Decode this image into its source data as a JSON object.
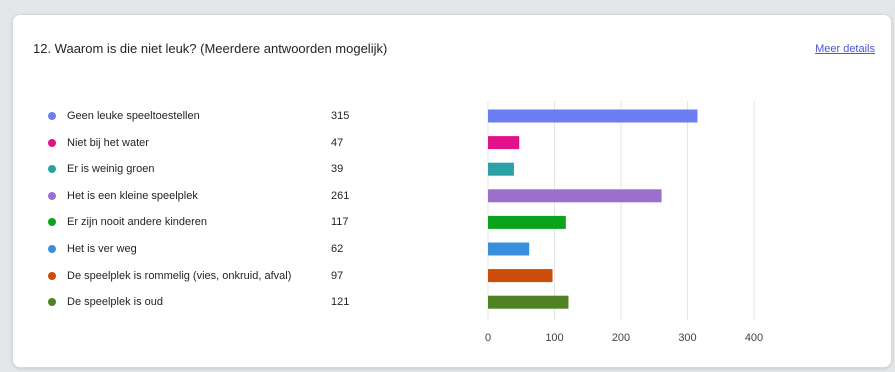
{
  "question": {
    "title": "12. Waarom is die niet leuk?  (Meerdere antwoorden mogelijk)",
    "details_label": "Meer details"
  },
  "chart_data": {
    "type": "bar",
    "orientation": "horizontal",
    "categories": [
      "Geen leuke speeltoestellen",
      "Niet bij het water",
      "Er is weinig groen",
      "Het is een kleine speelplek",
      "Er zijn nooit andere kinderen",
      "Het is ver weg",
      "De speelplek is rommelig (vies, onkruid, afval)",
      "De speelplek is oud"
    ],
    "values": [
      315,
      47,
      39,
      261,
      117,
      62,
      97,
      121
    ],
    "colors": [
      "#6b7df0",
      "#e3128a",
      "#2ba1a6",
      "#9c6fcd",
      "#0aa31b",
      "#3a8fdc",
      "#cc4c0b",
      "#4e8223"
    ],
    "xlim": [
      0,
      400
    ],
    "xticks": [
      0,
      100,
      200,
      300,
      400
    ],
    "grid": true,
    "legend": "left"
  }
}
